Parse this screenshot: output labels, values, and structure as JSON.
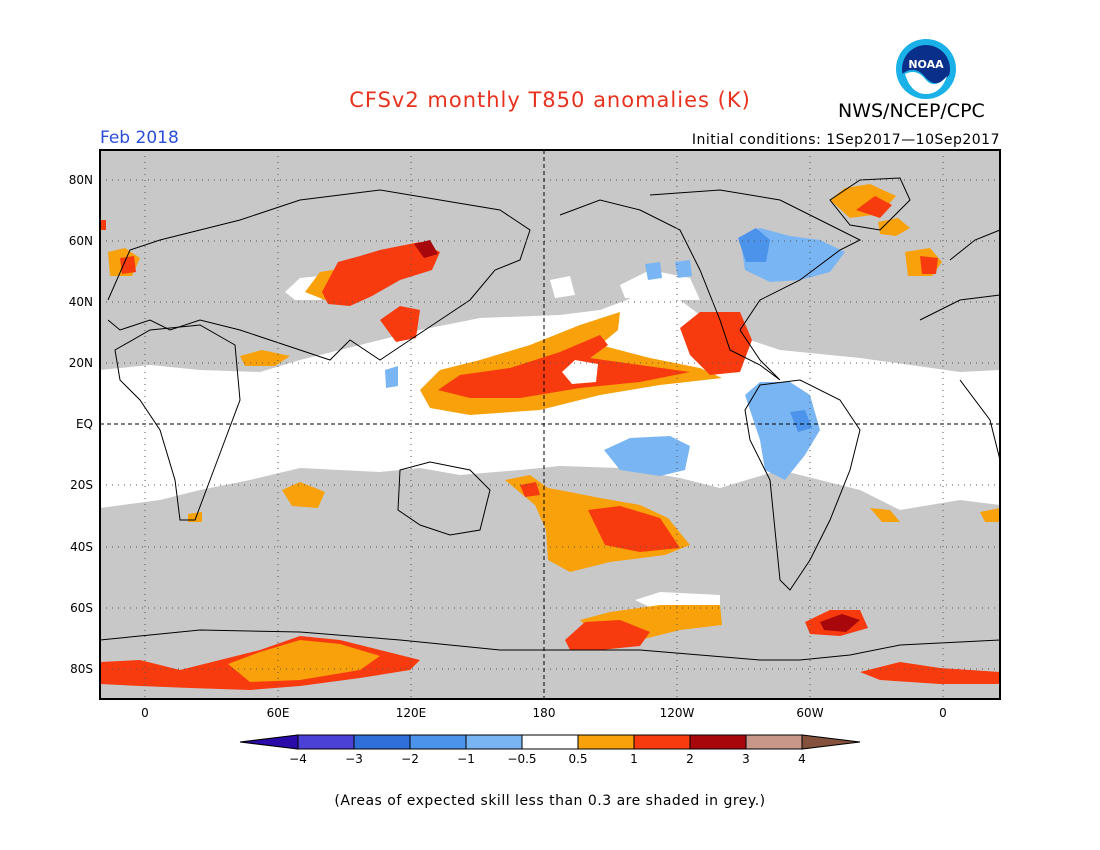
{
  "header": {
    "title": "CFSv2 monthly T850 anomalies (K)",
    "agency": "NWS/NCEP/CPC",
    "logo_text": "NOAA",
    "month": "Feb 2018",
    "initial_conditions": "Initial conditions: 1Sep2017—10Sep2017"
  },
  "map": {
    "lat_labels": [
      "80N",
      "60N",
      "40N",
      "20N",
      "EQ",
      "20S",
      "40S",
      "60S",
      "80S"
    ],
    "lon_labels": [
      "0",
      "60E",
      "120E",
      "180",
      "120W",
      "60W",
      "0"
    ],
    "grey_color": "#c8c8c8"
  },
  "colorbar": {
    "levels": [
      "−4",
      "−3",
      "−2",
      "−1",
      "−0.5",
      "0.5",
      "1",
      "2",
      "3",
      "4"
    ],
    "colors": [
      "#2a0aa8",
      "#4b41d6",
      "#2f6fd9",
      "#4c93ec",
      "#7ab5f3",
      "#ffffff",
      "#f8a10a",
      "#f83a0f",
      "#a8080b",
      "#c9968a",
      "#84513d"
    ]
  },
  "footnote": "(Areas of expected skill less than 0.3 are shaded in grey.)"
}
